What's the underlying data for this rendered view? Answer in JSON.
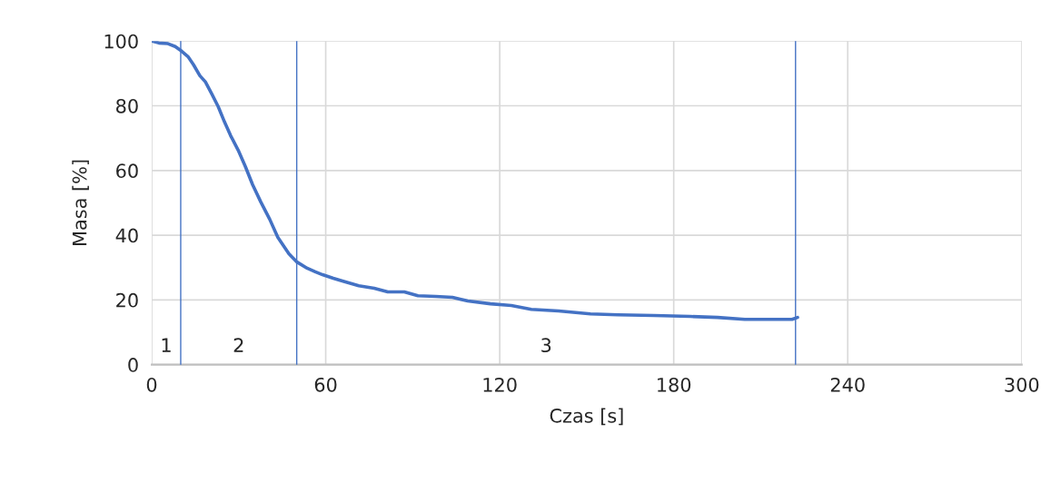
{
  "chart_data": {
    "type": "line",
    "xlabel": "Czas [s]",
    "ylabel": "Masa [%]",
    "x": [
      0,
      2.5,
      5.6,
      8.1,
      10.3,
      12.5,
      14.4,
      16.6,
      18.5,
      20.7,
      22.9,
      25.1,
      27.2,
      29.8,
      32.3,
      34.8,
      37.6,
      40.7,
      43.5,
      47.3,
      50.1,
      53.6,
      56.4,
      58.9,
      62.6,
      66,
      71.4,
      76.7,
      81.4,
      87.1,
      91.8,
      98,
      103.7,
      109,
      116.8,
      124,
      130.9,
      140.3,
      151.3,
      160.7,
      173.2,
      185.7,
      195.1,
      204.5,
      215.5,
      220.8,
      222.7
    ],
    "series": [
      {
        "color": "#4472c4",
        "values": [
          100,
          99.4,
          99.2,
          98.3,
          96.9,
          95.2,
          92.7,
          89.3,
          87.4,
          83.7,
          79.8,
          75,
          70.8,
          66.3,
          61.2,
          55.6,
          50.3,
          44.9,
          39.3,
          34.3,
          31.7,
          29.8,
          28.7,
          27.8,
          26.7,
          25.8,
          24.4,
          23.6,
          22.5,
          22.5,
          21.3,
          21.1,
          20.8,
          19.7,
          18.8,
          18.3,
          17.1,
          16.6,
          15.7,
          15.4,
          15.2,
          14.9,
          14.6,
          14.0,
          14.0,
          14.0,
          14.6
        ]
      }
    ],
    "xlim": [
      0,
      300
    ],
    "xticks": [
      0,
      60,
      120,
      180,
      240,
      300
    ],
    "ylim": [
      0,
      100
    ],
    "yticks": [
      0,
      20,
      40,
      60,
      80,
      100
    ],
    "grid": true,
    "legend": false,
    "marker": "none",
    "line_style": "solid",
    "ref_lines": [
      {
        "axis": "x",
        "value": 10,
        "color": "#4472c4",
        "line_style": "solid"
      },
      {
        "axis": "x",
        "value": 50,
        "color": "#4472c4",
        "line_style": "solid"
      },
      {
        "axis": "x",
        "value": 222,
        "color": "#4472c4",
        "line_style": "solid"
      }
    ],
    "annotations": [
      "1",
      "2",
      "3"
    ]
  }
}
